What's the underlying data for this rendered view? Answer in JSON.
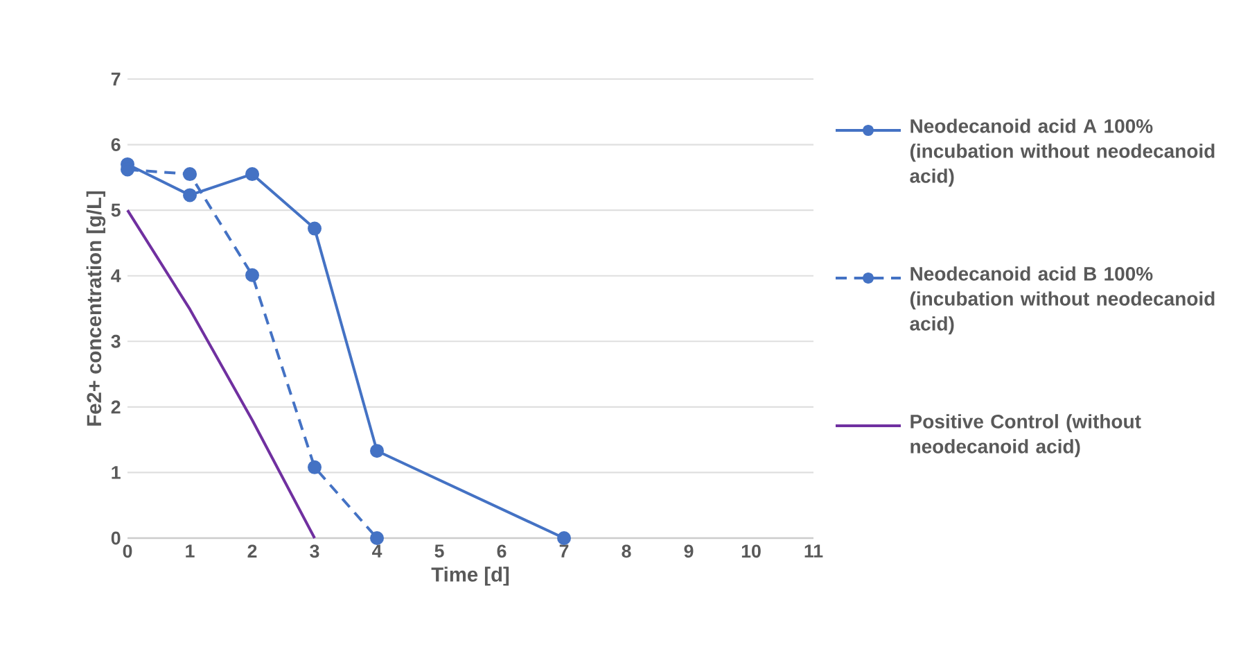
{
  "chart_data": {
    "type": "line",
    "xlabel": "Time [d]",
    "ylabel": "Fe2+ concentration [g/L]",
    "xlim": [
      0,
      11
    ],
    "xticks": [
      0,
      1,
      2,
      3,
      4,
      5,
      6,
      7,
      8,
      9,
      10,
      11
    ],
    "ylim": [
      0,
      7
    ],
    "yticks": [
      0,
      1,
      2,
      3,
      4,
      5,
      6,
      7
    ],
    "grid": "y",
    "legend": "right",
    "series": [
      {
        "name": "Neodecanoid acid A 100% (incubation without neodecanoid acid)",
        "color": "#4472c4",
        "marker": "circle",
        "line_style": "solid",
        "x": [
          0,
          1,
          2,
          3,
          4,
          7
        ],
        "values": [
          5.7,
          5.23,
          5.55,
          4.72,
          1.33,
          0
        ]
      },
      {
        "name": "Neodecanoid acid B 100% (incubation without neodecanoid acid)",
        "color": "#4472c4",
        "marker": "circle",
        "line_style": "dashed",
        "x": [
          0,
          1,
          2,
          3,
          4
        ],
        "values": [
          5.62,
          5.55,
          4.01,
          1.08,
          0
        ]
      },
      {
        "name": "Positive Control (without neodecanoid acid)",
        "color": "#7030a0",
        "marker": "none",
        "line_style": "solid",
        "x": [
          0,
          1,
          2,
          3
        ],
        "values": [
          5,
          3.49,
          1.8,
          0
        ]
      }
    ]
  }
}
